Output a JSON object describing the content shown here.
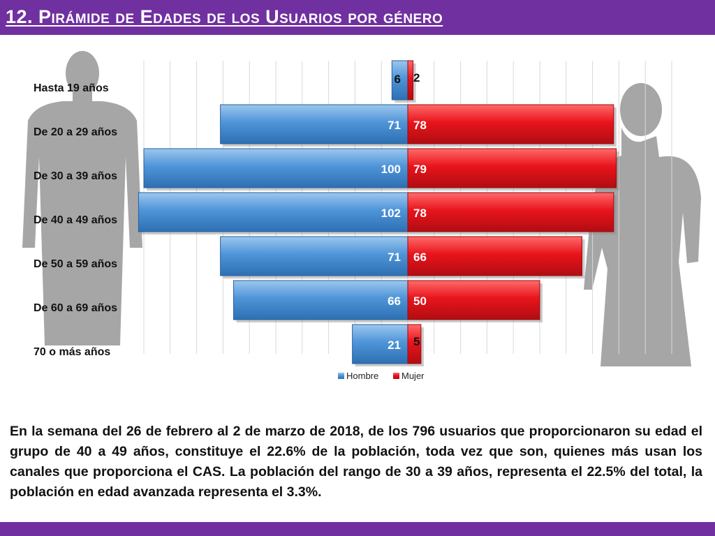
{
  "header": {
    "title": "12. Pirámide de Edades de los Usuarios por género"
  },
  "colors": {
    "header_bg": "#7030a0",
    "hombre": "#4f95d8",
    "mujer": "#e8141b",
    "silhouette": "#9a9a9a"
  },
  "chart_data": {
    "type": "bar",
    "orientation": "horizontal",
    "layout": "population-pyramid",
    "categories": [
      "Hasta 19 años",
      "De 20 a 29 años",
      "De 30 a 39 años",
      "De 40 a 49 años",
      "De 50 a 59 años",
      "De 60 a 69 años",
      "70 o más años"
    ],
    "series": [
      {
        "name": "Hombre",
        "values": [
          6,
          71,
          100,
          102,
          71,
          66,
          21
        ],
        "color": "#4f95d8"
      },
      {
        "name": "Mujer",
        "values": [
          2,
          78,
          79,
          78,
          66,
          50,
          5
        ],
        "color": "#e8141b"
      }
    ],
    "xlim": [
      -110,
      110
    ],
    "grid": true,
    "legend": "bottom"
  },
  "body": {
    "paragraph": "En la semana del 26 de febrero al 2 de marzo de 2018, de los 796 usuarios  que proporcionaron su edad el grupo de 40 a 49 años, constituye el 22.6% de la población, toda vez que son, quienes más usan los canales que proporciona el CAS. La población del rango de 30 a 39 años, representa el 22.5% del total, la población en edad avanzada representa el 3.3%."
  }
}
